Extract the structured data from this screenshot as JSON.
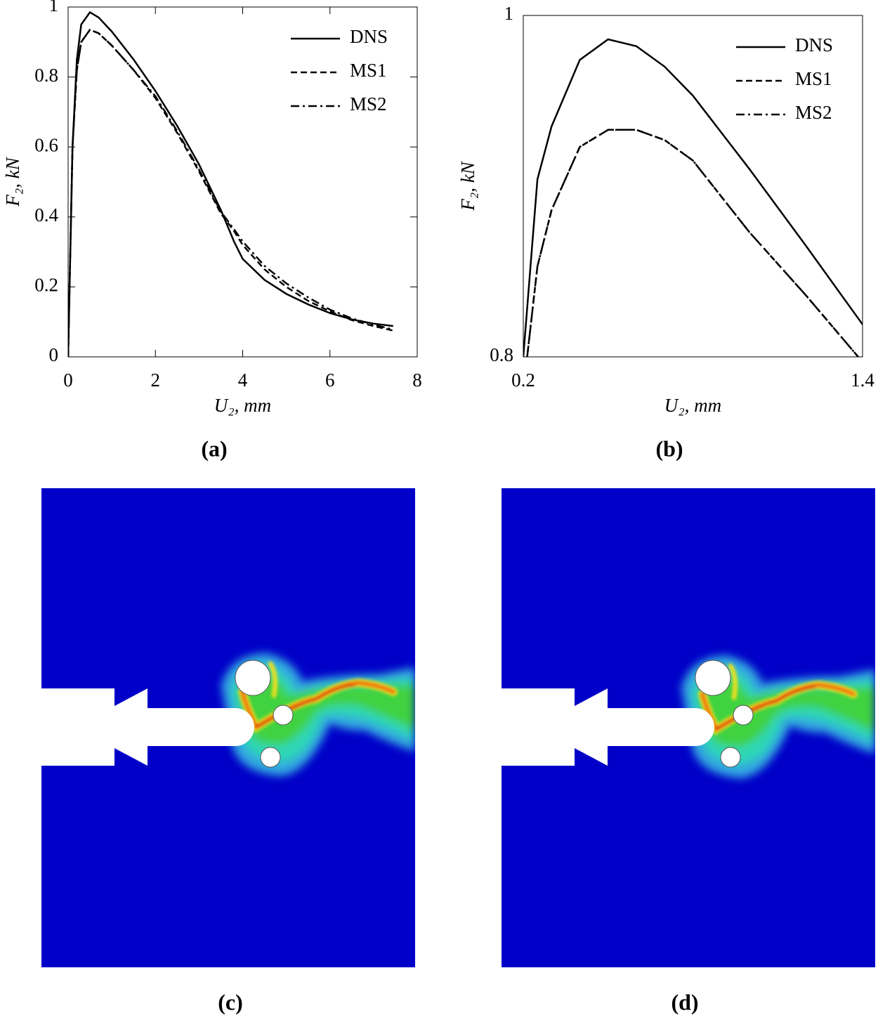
{
  "chart_data": [
    {
      "type": "line",
      "xlabel": "U₂, mm",
      "ylabel": "F₂, kN",
      "x": [
        0,
        0.1,
        0.2,
        0.3,
        0.5,
        0.7,
        1,
        1.5,
        2,
        2.5,
        3,
        3.5,
        3.8,
        4,
        4.5,
        5,
        5.5,
        6,
        6.5,
        7,
        7.45
      ],
      "series": [
        {
          "name": "DNS",
          "color": "#000000",
          "linestyle": "solid",
          "values": [
            0,
            0.6,
            0.85,
            0.95,
            0.985,
            0.97,
            0.93,
            0.85,
            0.76,
            0.66,
            0.55,
            0.42,
            0.33,
            0.28,
            0.22,
            0.18,
            0.15,
            0.125,
            0.107,
            0.095,
            0.088
          ]
        },
        {
          "name": "MS1",
          "color": "#000000",
          "linestyle": "dashed",
          "values": [
            0,
            0.6,
            0.82,
            0.9,
            0.935,
            0.925,
            0.89,
            0.82,
            0.74,
            0.64,
            0.53,
            0.41,
            0.36,
            0.32,
            0.25,
            0.2,
            0.16,
            0.13,
            0.105,
            0.088,
            0.075
          ]
        },
        {
          "name": "MS2",
          "color": "#000000",
          "linestyle": "dashdot",
          "values": [
            0,
            0.6,
            0.82,
            0.9,
            0.935,
            0.925,
            0.89,
            0.82,
            0.745,
            0.645,
            0.535,
            0.415,
            0.365,
            0.33,
            0.26,
            0.21,
            0.17,
            0.135,
            0.11,
            0.092,
            0.078
          ]
        }
      ],
      "xlim": [
        0,
        8
      ],
      "xticks": [
        0,
        2,
        4,
        6,
        8
      ],
      "ylim": [
        0,
        1
      ],
      "yticks": [
        0,
        0.2,
        0.4,
        0.6,
        0.8,
        1
      ],
      "legend": "upper right"
    },
    {
      "type": "line",
      "xlabel": "U₂, mm",
      "ylabel": "F₂, kN",
      "x": [
        0.2,
        0.25,
        0.3,
        0.4,
        0.5,
        0.6,
        0.7,
        0.8,
        1.0,
        1.2,
        1.4
      ],
      "series": [
        {
          "name": "DNS",
          "color": "#000000",
          "linestyle": "solid",
          "values": [
            0.8,
            0.904,
            0.935,
            0.974,
            0.986,
            0.982,
            0.97,
            0.953,
            0.91,
            0.865,
            0.819
          ]
        },
        {
          "name": "MS1",
          "color": "#000000",
          "linestyle": "dashed",
          "values": [
            0.78,
            0.853,
            0.886,
            0.923,
            0.933,
            0.933,
            0.927,
            0.915,
            0.873,
            0.836,
            0.797
          ]
        },
        {
          "name": "MS2",
          "color": "#000000",
          "linestyle": "dashdot",
          "values": [
            0.78,
            0.853,
            0.886,
            0.923,
            0.933,
            0.933,
            0.927,
            0.915,
            0.873,
            0.836,
            0.797
          ]
        }
      ],
      "xlim": [
        0.2,
        1.4
      ],
      "xticks": [
        0.2,
        1.4
      ],
      "ylim": [
        0.8,
        1
      ],
      "yticks": [
        0.8,
        1
      ],
      "legend": "upper right"
    }
  ],
  "panel_labels": [
    "(a)",
    "(b)",
    "(c)",
    "(d)"
  ]
}
